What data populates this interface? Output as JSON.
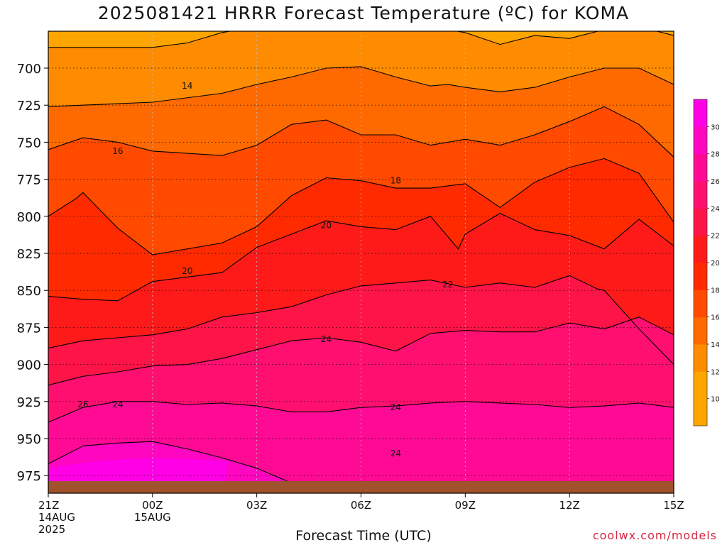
{
  "title": "2025081421 HRRR Forecast Temperature (ºC) for KOMA",
  "credit": "coolwx.com/models",
  "colors": {
    "ground": "#a0522d",
    "c10": "#ffa500",
    "c12": "#ff8c00",
    "c14": "#ff6a00",
    "c16": "#ff4a00",
    "c18": "#ff2a00",
    "c20": "#ff1a1a",
    "c22": "#ff1448",
    "c24": "#ff1070",
    "c26": "#ff0a95",
    "c28": "#ff06c0",
    "c30": "#ff00e6"
  },
  "chart_data": {
    "type": "contour",
    "title": "2025081421 HRRR Forecast Temperature (ºC) for KOMA",
    "xlabel": "Forecast Time (UTC)",
    "ylabel": "",
    "x_ticks": [
      {
        "lines": [
          "21Z",
          "14AUG",
          "2025"
        ]
      },
      {
        "lines": [
          "00Z",
          "15AUG"
        ]
      },
      {
        "lines": [
          "03Z"
        ]
      },
      {
        "lines": [
          "06Z"
        ]
      },
      {
        "lines": [
          "09Z"
        ]
      },
      {
        "lines": [
          "12Z"
        ]
      },
      {
        "lines": [
          "15Z"
        ]
      }
    ],
    "x_hours": [
      0,
      18
    ],
    "y_ticks": [
      700,
      725,
      750,
      775,
      800,
      825,
      850,
      875,
      900,
      925,
      950,
      975
    ],
    "ylim_hpa": [
      672,
      980
    ],
    "colorbar": {
      "levels": [
        8,
        10,
        12,
        14,
        16,
        18,
        20,
        22,
        24,
        26,
        28,
        30,
        32
      ],
      "labels": [
        "10",
        "12",
        "14",
        "16",
        "18",
        "20",
        "22",
        "24",
        "26",
        "28",
        "30"
      ]
    },
    "fill_order_levels": [
      14,
      16,
      18,
      20,
      22,
      24,
      26,
      28
    ],
    "series": [
      {
        "level": 12,
        "x": [
          0,
          3,
          4,
          5,
          6,
          7,
          8,
          9,
          10,
          11,
          12,
          13,
          14,
          15,
          16,
          17,
          18
        ],
        "y": [
          686,
          686,
          683,
          676,
          672,
          673,
          672,
          673,
          674,
          672,
          676,
          684,
          678,
          680,
          674,
          672,
          678
        ]
      },
      {
        "level": 14,
        "x": [
          0,
          2,
          3,
          5,
          6,
          7,
          8,
          9,
          10,
          11,
          11.5,
          12,
          13,
          14,
          15,
          16,
          17,
          18
        ],
        "y": [
          726,
          724,
          723,
          717,
          711,
          706,
          700,
          699,
          706,
          712,
          711,
          713,
          716,
          713,
          706,
          700,
          700,
          711
        ]
      },
      {
        "level": 16,
        "x": [
          0,
          1,
          2,
          3,
          5,
          6,
          7,
          8,
          9,
          10,
          11,
          12,
          13,
          14,
          15,
          16,
          17,
          18
        ],
        "y": [
          755,
          747,
          750,
          756,
          759,
          752,
          738,
          735,
          745,
          745,
          752,
          748,
          752,
          745,
          736,
          726,
          738,
          760
        ]
      },
      {
        "level": 18,
        "x": [
          0,
          0.8,
          1,
          2,
          3,
          5,
          6,
          7,
          8,
          9,
          10,
          11,
          12,
          13,
          14,
          15,
          16,
          17,
          18
        ],
        "y": [
          800,
          788,
          784,
          808,
          826,
          818,
          807,
          786,
          774,
          776,
          781,
          781,
          778,
          794,
          777,
          767,
          761,
          771,
          804
        ]
      },
      {
        "level": 20,
        "x": [
          0,
          1,
          2,
          3,
          5,
          6,
          7,
          8,
          9,
          10,
          11,
          11.8,
          12,
          13,
          14,
          15,
          16,
          17,
          18
        ],
        "y": [
          854,
          856,
          857,
          844,
          838,
          821,
          812,
          803,
          807,
          809,
          800,
          822,
          812,
          798,
          809,
          813,
          822,
          802,
          820
        ]
      },
      {
        "level": 22,
        "x": [
          0,
          1,
          2,
          3,
          4,
          5,
          6,
          7,
          8,
          9,
          10,
          11,
          12,
          13,
          14,
          15,
          15.8,
          16,
          17,
          18
        ],
        "y": [
          889,
          884,
          882,
          880,
          876,
          868,
          865,
          861,
          853,
          847,
          845,
          843,
          848,
          845,
          848,
          840,
          849,
          850,
          876,
          900
        ]
      },
      {
        "level": 24,
        "x": [
          0,
          1,
          2,
          3,
          4,
          5,
          6,
          7,
          8,
          9,
          10,
          11,
          12,
          13,
          14,
          15,
          16,
          17,
          18
        ],
        "y": [
          914,
          908,
          905,
          901,
          900,
          896,
          890,
          884,
          882,
          885,
          891,
          879,
          877,
          878,
          878,
          872,
          876,
          868,
          880
        ]
      },
      {
        "level": 26,
        "x": [
          0,
          1,
          2,
          3,
          4,
          5,
          6,
          7,
          8,
          9,
          10,
          11,
          12,
          13,
          14,
          15,
          16,
          17,
          18
        ],
        "y": [
          939,
          929,
          925,
          925,
          927,
          926,
          928,
          932,
          932,
          929,
          928,
          926,
          925,
          926,
          927,
          929,
          928,
          926,
          929
        ]
      },
      {
        "level": 28,
        "x": [
          0,
          1,
          2,
          3,
          4,
          5,
          6,
          7,
          8,
          9,
          10,
          11,
          12,
          13,
          14,
          15,
          16,
          17,
          18
        ],
        "y": [
          967,
          955,
          953,
          952,
          957,
          963,
          970,
          980,
          980,
          980,
          980,
          980,
          980,
          980,
          980,
          980,
          980,
          980,
          980
        ]
      }
    ],
    "contour_labels": [
      "14",
      "16",
      "18",
      "20",
      "20",
      "22",
      "24",
      "24",
      "24",
      "26",
      "24"
    ]
  }
}
